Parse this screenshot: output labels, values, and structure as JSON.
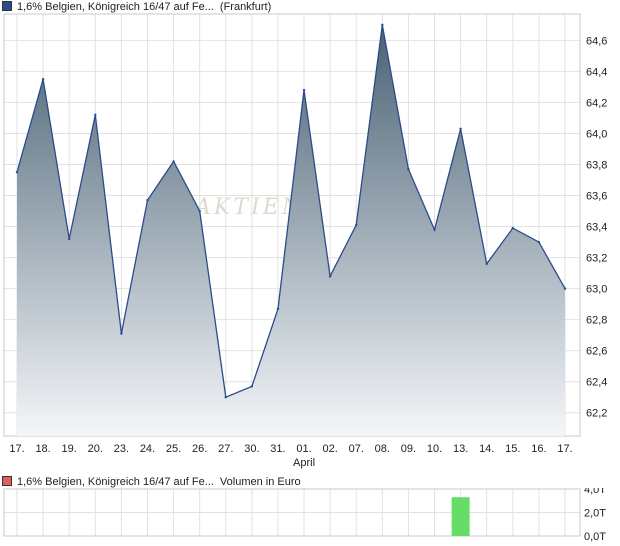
{
  "price_chart": {
    "legend": {
      "color": "#2b4c8c",
      "label": "1,6% Belgien, Königreich 16/47 auf Fe...",
      "venue": "(Frankfurt)"
    },
    "watermark": "AKTIEN",
    "chart_data": {
      "type": "area",
      "x_labels": [
        "17.",
        "18.",
        "19.",
        "20.",
        "23.",
        "24.",
        "25.",
        "26.",
        "27.",
        "30.",
        "31.",
        "01.",
        "02.",
        "07.",
        "08.",
        "09.",
        "10.",
        "13.",
        "14.",
        "15.",
        "16.",
        "17."
      ],
      "x_sublabel": {
        "label": "April",
        "index": 11
      },
      "values": [
        63.75,
        64.35,
        63.32,
        64.12,
        62.71,
        63.57,
        63.82,
        63.5,
        62.3,
        62.37,
        62.87,
        64.28,
        63.08,
        63.41,
        64.7,
        63.77,
        63.38,
        64.03,
        63.16,
        63.39,
        63.3,
        63.0
      ],
      "y_ticks": [
        "62,2",
        "62,4",
        "62,6",
        "62,8",
        "63,0",
        "63,2",
        "63,4",
        "63,6",
        "63,8",
        "64,0",
        "64,2",
        "64,4",
        "64,6"
      ],
      "y_tick_values": [
        62.2,
        62.4,
        62.6,
        62.8,
        63.0,
        63.2,
        63.4,
        63.6,
        63.8,
        64.0,
        64.2,
        64.4,
        64.6
      ],
      "ylim": [
        62.05,
        64.77
      ],
      "grid": true,
      "line_color": "#2b4c8c",
      "fill_top_color": "#4a6274",
      "fill_bottom_color": "#f4f6f9"
    }
  },
  "volume_chart": {
    "legend": {
      "color": "#e06060",
      "label": "1,6% Belgien, Königreich 16/47 auf Fe...",
      "suffix": "Volumen in Euro"
    },
    "chart_data": {
      "type": "bar",
      "values": [
        0,
        0,
        0,
        0,
        0,
        0,
        0,
        0,
        0,
        0,
        0,
        0,
        0,
        0,
        0,
        0,
        0,
        3.3,
        0,
        0,
        0,
        0
      ],
      "unit": "T",
      "y_ticks": [
        "0,0T",
        "2,0T",
        "4,0T"
      ],
      "y_tick_values": [
        0,
        2,
        4
      ],
      "ylim": [
        0,
        4
      ],
      "grid": true,
      "bar_color": "#66dd66"
    }
  }
}
